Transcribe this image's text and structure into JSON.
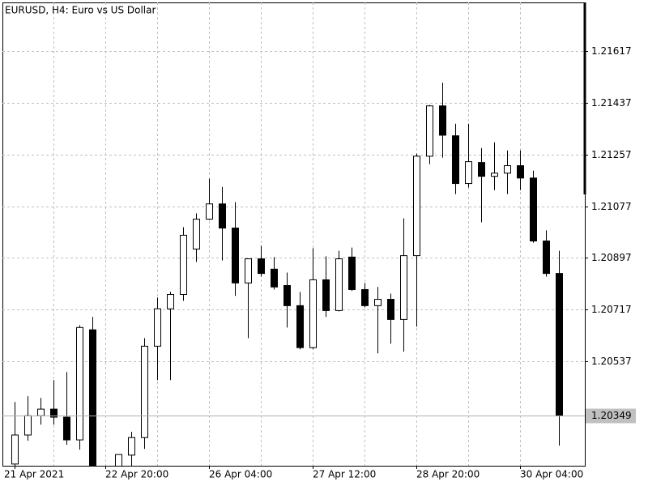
{
  "chart_data": {
    "type": "candlestick",
    "title": "EURUSD, H4:  Euro vs US Dollar",
    "categories": [
      "21 Apr 2021",
      null,
      null,
      null,
      null,
      null,
      null,
      "22 Apr 20:00",
      null,
      null,
      null,
      null,
      null,
      null,
      null,
      "26 Apr 04:00",
      null,
      null,
      null,
      null,
      null,
      null,
      null,
      "27 Apr 12:00",
      null,
      null,
      null,
      null,
      null,
      null,
      null,
      "28 Apr 20:00",
      null,
      null,
      null,
      null,
      null,
      null,
      null,
      "30 Apr 04:00",
      null,
      null,
      null
    ],
    "open": [
      1.2018,
      1.20281,
      1.20348,
      1.20371,
      1.20343,
      1.20264,
      1.20647,
      null,
      1.2017,
      1.20211,
      1.20272,
      1.2059,
      1.2072,
      1.2077,
      1.20928,
      1.21032,
      1.21085,
      1.21001,
      1.2081,
      1.20894,
      1.20858,
      1.20801,
      1.20731,
      1.20585,
      1.20821,
      1.20714,
      1.209,
      1.20787,
      1.20731,
      1.20753,
      1.20683,
      1.20905,
      1.21251,
      1.21426,
      1.21322,
      1.21156,
      1.21229,
      1.21181,
      1.21192,
      1.21218,
      1.21175,
      1.20956,
      1.20843
    ],
    "high": [
      1.20396,
      1.20416,
      1.2041,
      1.20472,
      1.205,
      1.20663,
      1.20692,
      null,
      1.20213,
      1.20292,
      1.20618,
      1.20759,
      1.20779,
      1.21004,
      1.21052,
      1.21173,
      1.21144,
      1.21091,
      1.20894,
      1.20939,
      1.209,
      1.20846,
      1.20779,
      1.20931,
      1.20903,
      1.20922,
      1.20933,
      1.2081,
      1.20796,
      1.20773,
      1.21035,
      1.2126,
      1.21429,
      1.21507,
      1.21364,
      1.21364,
      1.21279,
      1.21299,
      1.21271,
      1.21271,
      1.21201,
      1.20993,
      1.20922
    ],
    "low": [
      1.20165,
      1.20261,
      1.20317,
      1.20317,
      1.20247,
      1.2023,
      1.2014,
      null,
      1.2016,
      1.20165,
      1.20233,
      1.20472,
      1.20472,
      1.20748,
      1.20883,
      1.21029,
      1.20888,
      1.20765,
      1.20618,
      1.20832,
      1.20787,
      1.20655,
      1.20579,
      1.20579,
      1.20692,
      1.20711,
      1.20782,
      1.20725,
      1.20565,
      1.20599,
      1.20571,
      1.20658,
      1.21223,
      1.21246,
      1.21119,
      1.21142,
      1.21021,
      1.21133,
      1.21119,
      1.21133,
      1.2095,
      1.20832,
      1.20244
    ],
    "close": [
      1.20281,
      1.20348,
      1.20371,
      1.20343,
      1.20264,
      1.20655,
      1.2015,
      null,
      1.20213,
      1.20272,
      1.2059,
      1.2072,
      1.2077,
      1.20976,
      1.21032,
      1.21085,
      1.21001,
      1.2081,
      1.20894,
      1.20843,
      1.20796,
      1.20731,
      1.20585,
      1.20821,
      1.20714,
      1.20894,
      1.20787,
      1.20731,
      1.20753,
      1.20683,
      1.20905,
      1.21251,
      1.21426,
      1.21324,
      1.21156,
      1.21232,
      1.21181,
      1.21192,
      1.21218,
      1.21175,
      1.20956,
      1.20843,
      1.20349
    ],
    "up_color": "#ffffff",
    "down_color": "#000000",
    "ylim": [
      1.20174,
      1.21786
    ],
    "yticks": [
      1.20537,
      1.20717,
      1.20897,
      1.21077,
      1.21257,
      1.21437,
      1.21617
    ],
    "last_price": 1.20349,
    "grid": true
  }
}
